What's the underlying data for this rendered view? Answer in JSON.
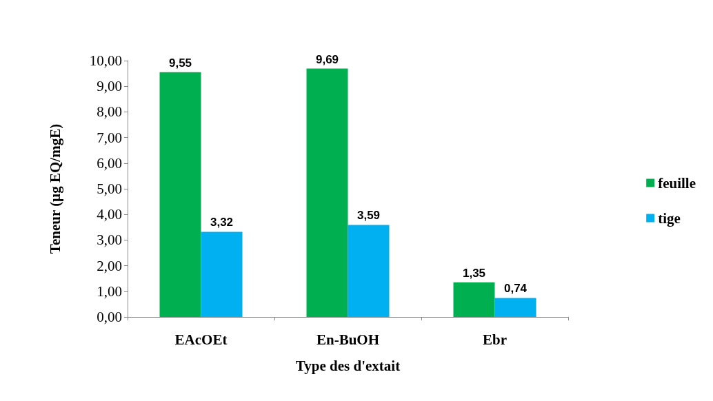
{
  "chart_data": {
    "type": "bar",
    "xlabel": "Type des d'extait",
    "ylabel": "Teneur (µg EQ/mgE)",
    "categories": [
      "EAcOEt",
      "En-BuOH",
      "Ebr"
    ],
    "series": [
      {
        "name": "feuille",
        "color": "#00b050",
        "values": [
          9.55,
          9.69,
          1.35
        ],
        "value_labels": [
          "9,55",
          "9,69",
          "1,35"
        ]
      },
      {
        "name": "tige",
        "color": "#00b0f0",
        "values": [
          3.32,
          3.59,
          0.74
        ],
        "value_labels": [
          "3,32",
          "3,59",
          "0,74"
        ]
      }
    ],
    "ylim": [
      0,
      10
    ],
    "yticks": [
      {
        "value": 0,
        "label": "0,00"
      },
      {
        "value": 1,
        "label": "1,00"
      },
      {
        "value": 2,
        "label": "2,00"
      },
      {
        "value": 3,
        "label": "3,00"
      },
      {
        "value": 4,
        "label": "4,00"
      },
      {
        "value": 5,
        "label": "5,00"
      },
      {
        "value": 6,
        "label": "6,00"
      },
      {
        "value": 7,
        "label": "7,00"
      },
      {
        "value": 8,
        "label": "8,00"
      },
      {
        "value": 9,
        "label": "9,00"
      },
      {
        "value": 10,
        "label": "10,00"
      }
    ],
    "grid": false,
    "legend": "right"
  }
}
